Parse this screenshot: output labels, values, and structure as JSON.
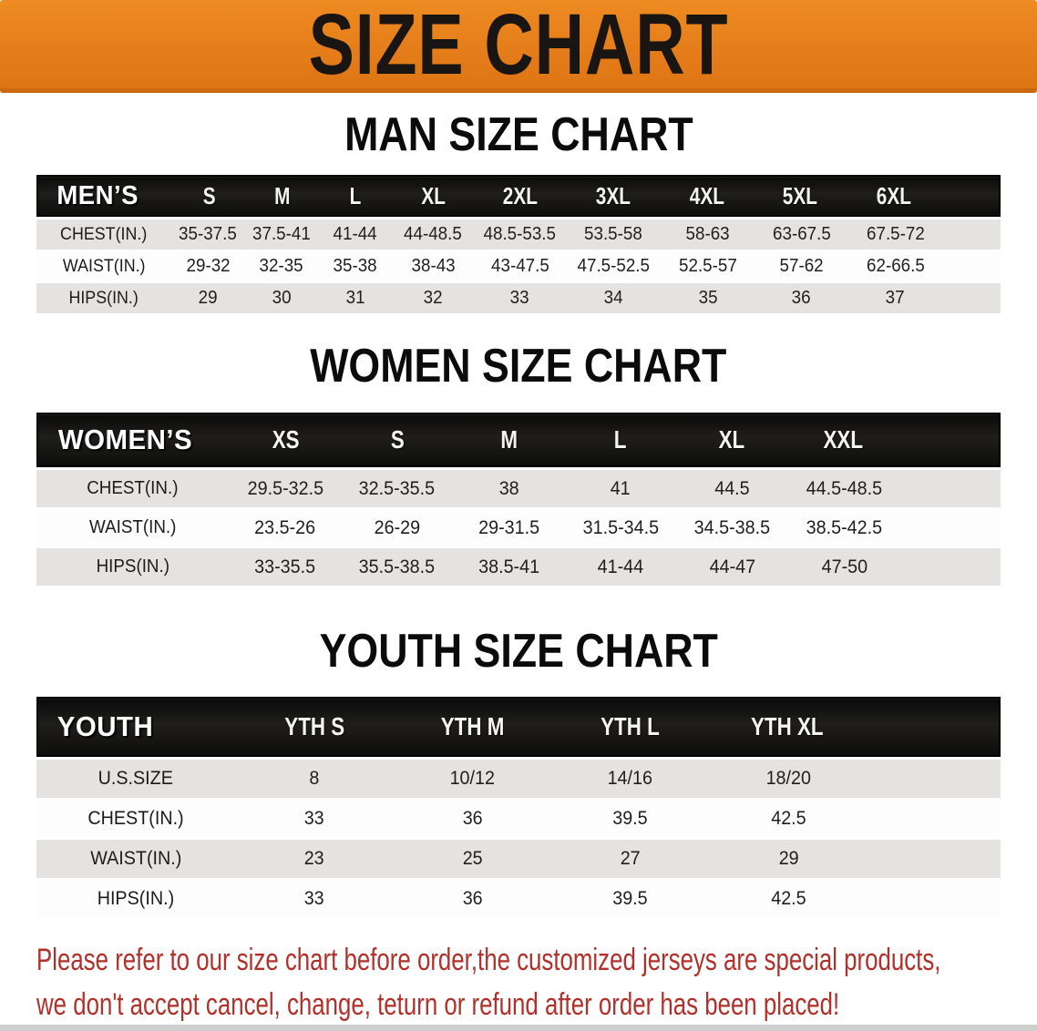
{
  "banner": {
    "title": "SIZE CHART",
    "bg_color": "#E57E1A",
    "text_color": "#191512"
  },
  "sections": [
    {
      "heading": "MAN SIZE CHART",
      "table": {
        "corner": "MEN’S",
        "columns": [
          "S",
          "M",
          "L",
          "XL",
          "2XL",
          "3XL",
          "4XL",
          "5XL",
          "6XL"
        ],
        "rows": [
          {
            "label": "CHEST(IN.)",
            "shaded": true,
            "values": [
              "35-37.5",
              "37.5-41",
              "41-44",
              "44-48.5",
              "48.5-53.5",
              "53.5-58",
              "58-63",
              "63-67.5",
              "67.5-72"
            ]
          },
          {
            "label": "WAIST(IN.)",
            "shaded": false,
            "values": [
              "29-32",
              "32-35",
              "35-38",
              "38-43",
              "43-47.5",
              "47.5-52.5",
              "52.5-57",
              "57-62",
              "62-66.5"
            ]
          },
          {
            "label": "HIPS(IN.)",
            "shaded": true,
            "values": [
              "29",
              "30",
              "31",
              "32",
              "33",
              "34",
              "35",
              "36",
              "37"
            ]
          }
        ]
      }
    },
    {
      "heading": "WOMEN SIZE CHART",
      "table": {
        "corner": "WOMEN’S",
        "columns": [
          "XS",
          "S",
          "M",
          "L",
          "XL",
          "XXL"
        ],
        "rows": [
          {
            "label": "CHEST(IN.)",
            "shaded": true,
            "values": [
              "29.5-32.5",
              "32.5-35.5",
              "38",
              "41",
              "44.5",
              "44.5-48.5"
            ]
          },
          {
            "label": "WAIST(IN.)",
            "shaded": false,
            "values": [
              "23.5-26",
              "26-29",
              "29-31.5",
              "31.5-34.5",
              "34.5-38.5",
              "38.5-42.5"
            ]
          },
          {
            "label": "HIPS(IN.)",
            "shaded": true,
            "values": [
              "33-35.5",
              "35.5-38.5",
              "38.5-41",
              "41-44",
              "44-47",
              "47-50"
            ]
          }
        ]
      }
    },
    {
      "heading": "YOUTH SIZE CHART",
      "table": {
        "corner": "YOUTH",
        "columns": [
          "YTH S",
          "YTH M",
          "YTH L",
          "YTH XL"
        ],
        "rows": [
          {
            "label": "U.S.SIZE",
            "shaded": true,
            "values": [
              "8",
              "10/12",
              "14/16",
              "18/20"
            ]
          },
          {
            "label": "CHEST(IN.)",
            "shaded": false,
            "values": [
              "33",
              "36",
              "39.5",
              "42.5"
            ]
          },
          {
            "label": "WAIST(IN.)",
            "shaded": true,
            "values": [
              "23",
              "25",
              "27",
              "29"
            ]
          },
          {
            "label": "HIPS(IN.)",
            "shaded": false,
            "values": [
              "33",
              "36",
              "39.5",
              "42.5"
            ]
          }
        ]
      }
    }
  ],
  "disclaimer": {
    "line1": "Please refer to our size chart before order,the customized jerseys are special products,",
    "line2": "we don't accept cancel, change, teturn or refund after order has been placed!",
    "color": "#B2302A"
  },
  "colors": {
    "banner_orange": "#E57E1A",
    "header_bar": "#141414",
    "shaded_row": "#E4E3E1",
    "disclaimer_red": "#B2302A"
  }
}
